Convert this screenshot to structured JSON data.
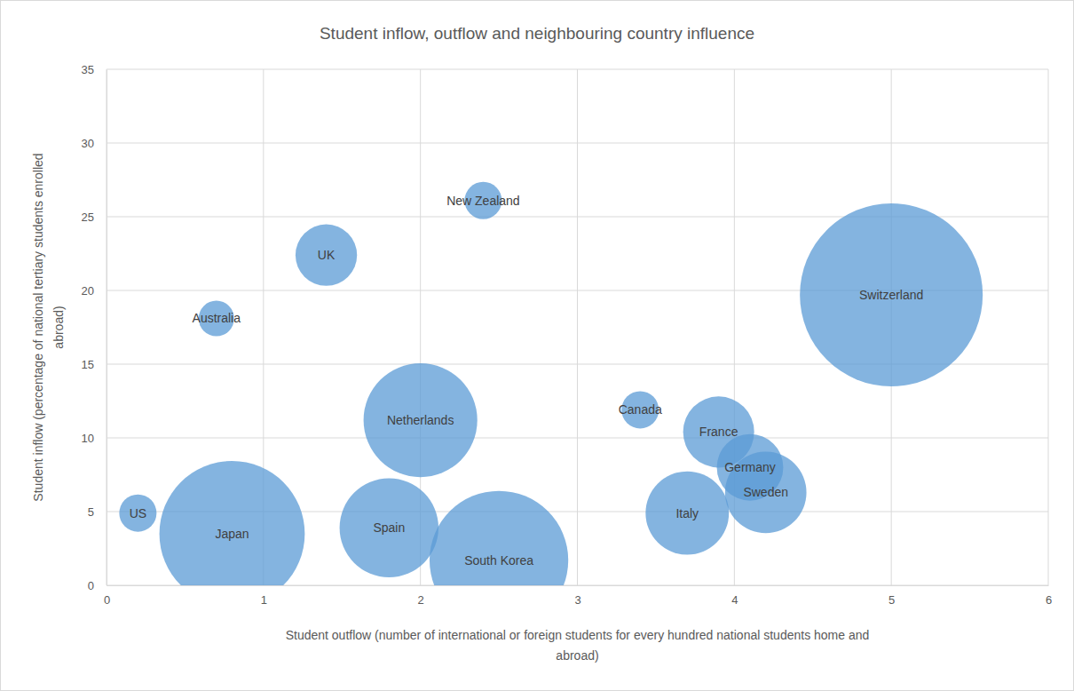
{
  "chart_data": {
    "type": "bubble",
    "title": "Student inflow, outflow and neighbouring country influence",
    "x_label": [
      "Student outflow (number of international or foreign students for every hundred national students home and",
      "abroad)"
    ],
    "y_label": [
      "Student inflow (percentage of national tertiary students enrolled",
      "abroad)"
    ],
    "categories": [
      "US",
      "Japan",
      "Australia",
      "UK",
      "Spain",
      "Netherlands",
      "South Korea",
      "New Zealand",
      "Canada",
      "France",
      "Germany",
      "Italy",
      "Sweden",
      "Switzerland"
    ],
    "x": [
      0.2,
      0.8,
      0.7,
      1.4,
      1.8,
      2.0,
      2.5,
      2.4,
      3.4,
      3.9,
      4.1,
      3.7,
      4.2,
      5.0
    ],
    "values": [
      4.9,
      3.5,
      18.1,
      22.4,
      3.9,
      11.2,
      1.7,
      26.1,
      11.9,
      10.4,
      8.0,
      4.9,
      6.3,
      19.7
    ],
    "sizes": [
      4.4,
      67,
      4,
      12,
      31,
      41,
      61,
      4.4,
      4.4,
      16,
      14,
      22,
      21,
      106
    ],
    "color": "#5b9bd5",
    "xlim": [
      0,
      6
    ],
    "xticks": [
      0,
      1,
      2,
      3,
      4,
      5,
      6
    ],
    "ylim": [
      0,
      35
    ],
    "yticks": [
      0,
      5,
      10,
      15,
      20,
      25,
      30,
      35
    ],
    "grid": true
  }
}
